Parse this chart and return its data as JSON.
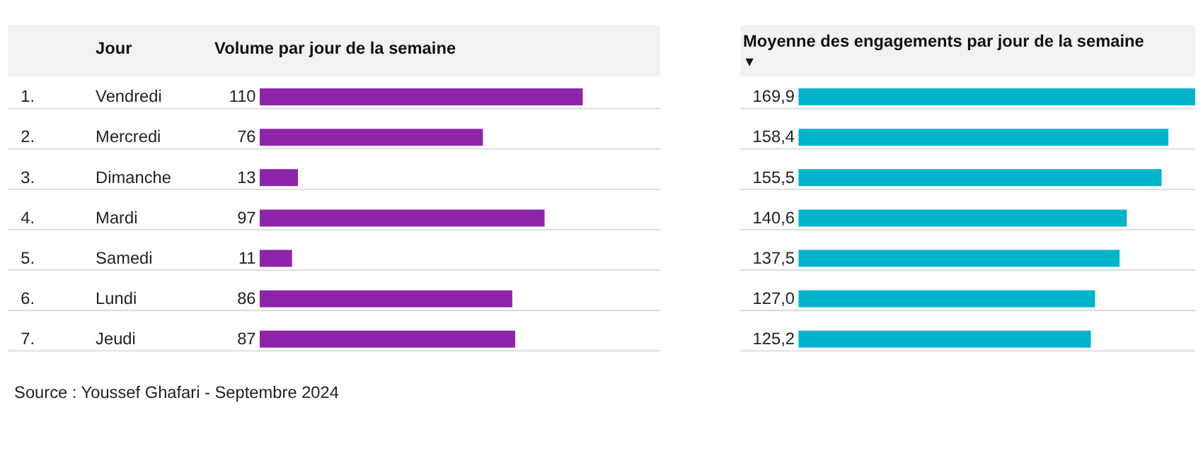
{
  "chart_data": [
    {
      "type": "bar",
      "orientation": "horizontal",
      "title": "Volume par jour de la semaine",
      "ylabel": "Jour",
      "categories": [
        "1. Vendredi",
        "2. Mercredi",
        "3. Dimanche",
        "4. Mardi",
        "5. Samedi",
        "6. Lundi",
        "7. Jeudi"
      ],
      "values": [
        110,
        76,
        13,
        97,
        11,
        86,
        87
      ],
      "color": "#8e24aa",
      "data_labels": true,
      "annotations": [
        "Source : Youssef Ghafari - Septembre 2024"
      ]
    },
    {
      "type": "bar",
      "orientation": "horizontal",
      "title": "Moyenne des engagements par jour de la semaine",
      "subtitle": "▼",
      "categories": [
        null,
        null,
        null,
        null,
        null,
        null,
        null
      ],
      "values": [
        169.9,
        158.4,
        155.5,
        140.6,
        137.5,
        127.0,
        125.2
      ],
      "color": "#00b4cc",
      "value_labels": [
        "169,9",
        "158,4",
        "155,5",
        "140,6",
        "137,5",
        "127,0",
        "125,2"
      ],
      "tick_labels": false
    }
  ]
}
